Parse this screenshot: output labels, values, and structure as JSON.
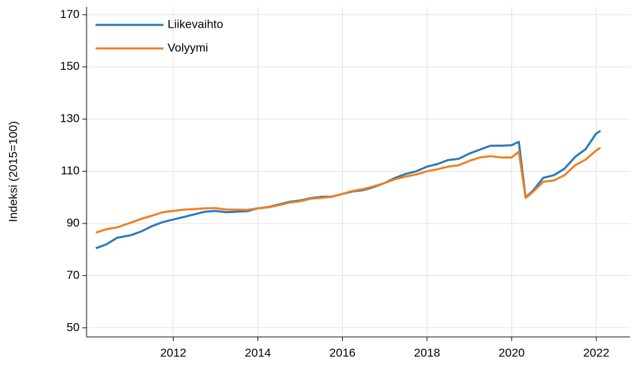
{
  "chart_data": {
    "type": "line",
    "y_label": "Indeksi (2015=100)",
    "x": [
      2010.17,
      2010.42,
      2010.67,
      2011.0,
      2011.25,
      2011.5,
      2011.75,
      2012.0,
      2012.25,
      2012.5,
      2012.75,
      2013.0,
      2013.25,
      2013.5,
      2013.75,
      2014.0,
      2014.25,
      2014.5,
      2014.75,
      2015.0,
      2015.25,
      2015.5,
      2015.75,
      2016.0,
      2016.25,
      2016.5,
      2016.75,
      2017.0,
      2017.25,
      2017.5,
      2017.75,
      2018.0,
      2018.25,
      2018.5,
      2018.75,
      2019.0,
      2019.25,
      2019.5,
      2019.75,
      2020.0,
      2020.17,
      2020.33,
      2020.5,
      2020.75,
      2021.0,
      2021.25,
      2021.5,
      2021.75,
      2022.0,
      2022.1
    ],
    "series": [
      {
        "name": "Liikevaihto",
        "color": "#2a7ab9",
        "values": [
          80.5,
          82,
          84.5,
          85.5,
          87,
          89,
          90.5,
          91.5,
          92.5,
          93.5,
          94.5,
          94.8,
          94.3,
          94.5,
          94.7,
          95.8,
          96.3,
          97.3,
          98.3,
          98.8,
          99.7,
          100.2,
          100.3,
          101.3,
          102.3,
          102.8,
          104,
          105.5,
          107.5,
          109,
          110,
          111.8,
          112.8,
          114.3,
          114.8,
          116.8,
          118.3,
          119.8,
          119.8,
          120,
          121.3,
          100,
          102.5,
          107.5,
          108.5,
          111,
          115.5,
          118.5,
          124.5,
          125.5
        ]
      },
      {
        "name": "Volyymi",
        "color": "#ef7f22",
        "values": [
          86.5,
          87.8,
          88.5,
          90.3,
          91.8,
          93,
          94.3,
          94.8,
          95.3,
          95.5,
          95.8,
          95.9,
          95.3,
          95.3,
          95.2,
          95.8,
          96.2,
          97,
          98,
          98.5,
          99.5,
          99.8,
          100.2,
          101.3,
          102.5,
          103.2,
          104.3,
          105.5,
          107,
          108,
          108.8,
          110,
          110.8,
          111.8,
          112.3,
          114,
          115.3,
          115.8,
          115.3,
          115.3,
          117.5,
          99.8,
          102,
          106,
          106.5,
          108.5,
          112.3,
          114.5,
          118,
          119
        ]
      }
    ],
    "xlim": [
      2009.95,
      2022.8
    ],
    "xticks": [
      2012,
      2014,
      2016,
      2018,
      2020,
      2022
    ],
    "ylim": [
      46.5,
      173
    ],
    "yticks": [
      50,
      70,
      90,
      110,
      130,
      150,
      170
    ],
    "grid": true,
    "legend": "upper left"
  }
}
